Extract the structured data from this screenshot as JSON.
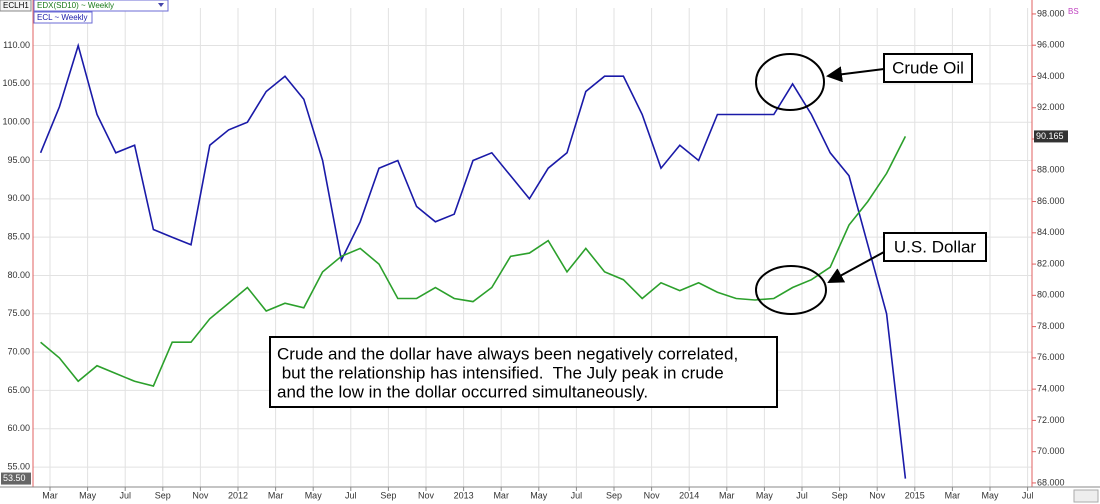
{
  "chart_data": {
    "type": "line",
    "symbol": "ECLH1",
    "corner_label": "BS",
    "x": [
      "2011-02",
      "2011-03",
      "2011-04",
      "2011-05",
      "2011-06",
      "2011-07",
      "2011-08",
      "2011-09",
      "2011-10",
      "2011-11",
      "2011-12",
      "2012-01",
      "2012-02",
      "2012-03",
      "2012-04",
      "2012-05",
      "2012-06",
      "2012-07",
      "2012-08",
      "2012-09",
      "2012-10",
      "2012-11",
      "2012-12",
      "2013-01",
      "2013-02",
      "2013-03",
      "2013-04",
      "2013-05",
      "2013-06",
      "2013-07",
      "2013-08",
      "2013-09",
      "2013-10",
      "2013-11",
      "2013-12",
      "2014-01",
      "2014-02",
      "2014-03",
      "2014-04",
      "2014-05",
      "2014-06",
      "2014-07",
      "2014-08",
      "2014-09",
      "2014-10",
      "2014-11",
      "2014-12"
    ],
    "series": [
      {
        "name": "ECL ~ Weekly",
        "color": "#1a1aa8",
        "last_label": "53.50",
        "values": [
          96,
          102,
          110,
          101,
          96,
          97,
          86,
          85,
          84,
          97,
          99,
          100,
          104,
          106,
          103,
          95,
          82,
          87,
          94,
          95,
          89,
          87,
          88,
          95,
          96,
          93,
          90,
          94,
          96,
          104,
          106,
          106,
          101,
          94,
          97,
          95,
          101,
          101,
          101,
          101,
          105,
          101,
          96,
          93,
          84,
          75,
          53.5
        ]
      },
      {
        "name": "EDX(SD10) ~ Weekly",
        "color": "#2ca02c",
        "axis": "y2",
        "last_label": "90.165",
        "values": [
          77,
          76,
          74.5,
          75.5,
          75,
          74.5,
          74.2,
          77,
          77,
          78.5,
          79.5,
          80.5,
          79,
          79.5,
          79.2,
          81.5,
          82.5,
          83,
          82,
          79.8,
          79.8,
          80.5,
          79.8,
          79.6,
          80.5,
          82.5,
          82.7,
          83.5,
          81.5,
          83,
          81.5,
          81,
          79.8,
          80.8,
          80.3,
          80.8,
          80.2,
          79.8,
          79.7,
          79.8,
          80.5,
          81,
          81.8,
          84.5,
          86,
          87.8,
          90.165
        ]
      }
    ],
    "ylim": [
      52.4,
      114.9
    ],
    "yticks": [
      {
        "value": 55,
        "label": "55.00"
      },
      {
        "value": 60,
        "label": "60.00"
      },
      {
        "value": 65,
        "label": "65.00"
      },
      {
        "value": 70,
        "label": "70.00"
      },
      {
        "value": 75,
        "label": "75.00"
      },
      {
        "value": 80,
        "label": "80.00"
      },
      {
        "value": 85,
        "label": "85.00"
      },
      {
        "value": 90,
        "label": "90.00"
      },
      {
        "value": 95,
        "label": "95.00"
      },
      {
        "value": 100,
        "label": "100.00"
      },
      {
        "value": 105,
        "label": "105.00"
      },
      {
        "value": 110,
        "label": "110.00"
      }
    ],
    "y2lim": [
      67.74,
      98.38
    ],
    "y2ticks": [
      {
        "value": 68,
        "label": "68.000"
      },
      {
        "value": 70,
        "label": "70.000"
      },
      {
        "value": 72,
        "label": "72.000"
      },
      {
        "value": 74,
        "label": "74.000"
      },
      {
        "value": 76,
        "label": "76.000"
      },
      {
        "value": 78,
        "label": "78.000"
      },
      {
        "value": 80,
        "label": "80.000"
      },
      {
        "value": 82,
        "label": "82.000"
      },
      {
        "value": 84,
        "label": "84.000"
      },
      {
        "value": 86,
        "label": "86.000"
      },
      {
        "value": 88,
        "label": "88.000"
      },
      {
        "value": 90,
        "label": "90.000"
      },
      {
        "value": 92,
        "label": "92.000"
      },
      {
        "value": 94,
        "label": "94.000"
      },
      {
        "value": 96,
        "label": "96.000"
      },
      {
        "value": 98,
        "label": "98.000"
      }
    ],
    "xticks": [
      {
        "value": "2011-03",
        "label": "Mar"
      },
      {
        "value": "2011-05",
        "label": "May"
      },
      {
        "value": "2011-07",
        "label": "Jul"
      },
      {
        "value": "2011-09",
        "label": "Sep"
      },
      {
        "value": "2011-11",
        "label": "Nov"
      },
      {
        "value": "2012-01",
        "label": "2012"
      },
      {
        "value": "2012-03",
        "label": "Mar"
      },
      {
        "value": "2012-05",
        "label": "May"
      },
      {
        "value": "2012-07",
        "label": "Jul"
      },
      {
        "value": "2012-09",
        "label": "Sep"
      },
      {
        "value": "2012-11",
        "label": "Nov"
      },
      {
        "value": "2013-01",
        "label": "2013"
      },
      {
        "value": "2013-03",
        "label": "Mar"
      },
      {
        "value": "2013-05",
        "label": "May"
      },
      {
        "value": "2013-07",
        "label": "Jul"
      },
      {
        "value": "2013-09",
        "label": "Sep"
      },
      {
        "value": "2013-11",
        "label": "Nov"
      },
      {
        "value": "2014-01",
        "label": "2014"
      },
      {
        "value": "2014-03",
        "label": "Mar"
      },
      {
        "value": "2014-05",
        "label": "May"
      },
      {
        "value": "2014-07",
        "label": "Jul"
      },
      {
        "value": "2014-09",
        "label": "Sep"
      },
      {
        "value": "2014-11",
        "label": "Nov"
      },
      {
        "value": "2015-01",
        "label": "2015"
      },
      {
        "value": "2015-03",
        "label": "Mar"
      },
      {
        "value": "2015-05",
        "label": "May"
      },
      {
        "value": "2015-07",
        "label": "Jul"
      }
    ],
    "grid": true,
    "annotations": [
      "Crude Oil",
      "U.S. Dollar"
    ],
    "note": [
      "Crude and the dollar have always been negatively correlated,",
      " but the relationship has intensified.  The July peak in crude",
      "and the low in the dollar occurred simultaneously."
    ]
  }
}
